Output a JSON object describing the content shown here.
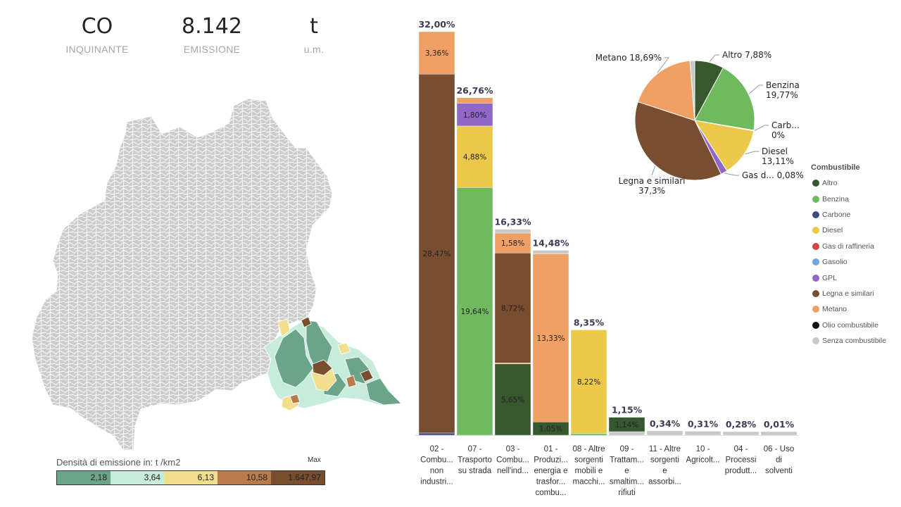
{
  "kpis": [
    {
      "value": "CO",
      "label": "INQUINANTE"
    },
    {
      "value": "8.142",
      "label": "EMISSIONE"
    },
    {
      "value": "t",
      "label": "u.m."
    }
  ],
  "map_legend": {
    "title": "Densità di emissione in:  t /km2",
    "max_label": "Max",
    "segments": [
      {
        "label": "2,18",
        "color": "#6aa58a"
      },
      {
        "label": "3,64",
        "color": "#c7ecdb"
      },
      {
        "label": "6,13",
        "color": "#f2df8e"
      },
      {
        "label": "10,58",
        "color": "#b97a4c"
      },
      {
        "label": "1.647,97",
        "color": "#7a4e2d"
      }
    ]
  },
  "colors": {
    "Altro": "#37572f",
    "Benzina": "#6fba5f",
    "Carbone": "#3b4a80",
    "Diesel": "#ecc949",
    "Gas di raffineria": "#d64541",
    "Gasolio": "#6fa8dc",
    "GPL": "#9067c8",
    "Legna e similari": "#784d30",
    "Metano": "#f0a064",
    "Olio combustibile": "#111111",
    "Senza combustibile": "#c8c8c8",
    "map_base": "#cccccc",
    "map_highlight": "#6aa58a"
  },
  "fuel_legend": {
    "title": "Combustibile",
    "items": [
      "Altro",
      "Benzina",
      "Carbone",
      "Diesel",
      "Gas di raffineria",
      "Gasolio",
      "GPL",
      "Legna e similari",
      "Metano",
      "Olio combustibile",
      "Senza combustibile"
    ]
  },
  "chart_data": [
    {
      "type": "bar",
      "stacked": true,
      "title": "",
      "ylim": [
        0,
        32
      ],
      "categories": [
        {
          "lines": [
            "02 -",
            "Combu...",
            "non",
            "industri..."
          ],
          "total": 32.0,
          "total_label": "32,00%"
        },
        {
          "lines": [
            "07 -",
            "Trasporto",
            "su strada"
          ],
          "total": 26.76,
          "total_label": "26,76%"
        },
        {
          "lines": [
            "03 -",
            "Combu...",
            "nell'ind..."
          ],
          "total": 16.33,
          "total_label": "16,33%"
        },
        {
          "lines": [
            "01 -",
            "Produzi...",
            "energia e",
            "trasfor...",
            "combu..."
          ],
          "total": 14.48,
          "total_label": "14,48%"
        },
        {
          "lines": [
            "08 - Altre",
            "sorgenti",
            "mobili e",
            "macchi..."
          ],
          "total": 8.35,
          "total_label": "8,35%"
        },
        {
          "lines": [
            "09 -",
            "Trattam...",
            "e",
            "smaltim...",
            "rifiuti"
          ],
          "total": 1.15,
          "total_label": "1,15%"
        },
        {
          "lines": [
            "11 - Altre",
            "sorgenti",
            "e",
            "assorbi..."
          ],
          "total": 0.34,
          "total_label": "0,34%"
        },
        {
          "lines": [
            "10 -",
            "Agricolt..."
          ],
          "total": 0.31,
          "total_label": "0,31%"
        },
        {
          "lines": [
            "04 -",
            "Processi",
            "produtt..."
          ],
          "total": 0.28,
          "total_label": "0,28%"
        },
        {
          "lines": [
            "06 - Uso",
            "di",
            "solventi"
          ],
          "total": 0.01,
          "total_label": "0,01%"
        }
      ],
      "stacks": [
        [
          {
            "s": "Carbone",
            "v": 0.17
          },
          {
            "s": "Legna e similari",
            "v": 28.47,
            "label": "28,47%"
          },
          {
            "s": "Metano",
            "v": 3.36,
            "label": "3,36%"
          }
        ],
        [
          {
            "s": "Benzina",
            "v": 19.64,
            "label": "19,64%"
          },
          {
            "s": "Diesel",
            "v": 4.88,
            "label": "4,88%"
          },
          {
            "s": "GPL",
            "v": 1.8,
            "label": "1,80%"
          },
          {
            "s": "Metano",
            "v": 0.44
          }
        ],
        [
          {
            "s": "Altro",
            "v": 5.65,
            "label": "5,65%"
          },
          {
            "s": "Metano",
            "v": 0.08
          },
          {
            "s": "Legna e similari",
            "v": 8.72,
            "label": "8,72%"
          },
          {
            "s": "Metano",
            "v": 1.58,
            "label": "1,58%"
          },
          {
            "s": "Senza combustibile",
            "v": 0.3
          }
        ],
        [
          {
            "s": "Altro",
            "v": 1.05,
            "label": "1,05%"
          },
          {
            "s": "Metano",
            "v": 13.33,
            "label": "13,33%"
          },
          {
            "s": "Senza combustibile",
            "v": 0.1
          }
        ],
        [
          {
            "s": "Benzina",
            "v": 0.13
          },
          {
            "s": "Diesel",
            "v": 8.22,
            "label": "8,22%"
          }
        ],
        [
          {
            "s": "Senza combustibile",
            "v": 0.01
          },
          {
            "s": "Altro",
            "v": 1.14,
            "label": "1,14%"
          }
        ],
        [
          {
            "s": "Senza combustibile",
            "v": 0.34
          }
        ],
        [
          {
            "s": "Senza combustibile",
            "v": 0.31
          }
        ],
        [
          {
            "s": "Senza combustibile",
            "v": 0.28
          }
        ],
        [
          {
            "s": "Senza combustibile",
            "v": 0.01
          }
        ]
      ]
    },
    {
      "type": "pie",
      "slices": [
        {
          "name": "Altro",
          "label": "Altro 7,88%",
          "value": 7.88
        },
        {
          "name": "Benzina",
          "label": "Benzina 19,77%",
          "value": 19.77
        },
        {
          "name": "Carbone",
          "label": "Carb... 0%",
          "value": 0.17
        },
        {
          "name": "Diesel",
          "label": "Diesel 13,11%",
          "value": 13.11
        },
        {
          "name": "GPL",
          "label": "Gas d... 0,08%",
          "value": 1.8
        },
        {
          "name": "Legna e similari",
          "label": "Legna e similari 37,3%",
          "value": 37.3
        },
        {
          "name": "Metano",
          "label": "Metano 18,69%",
          "value": 18.69
        },
        {
          "name": "Senza combustibile",
          "label": "",
          "value": 1.28
        }
      ],
      "labels": [
        {
          "lines": [
            "Altro 7,88%"
          ],
          "slice": "Altro"
        },
        {
          "lines": [
            "Benzina",
            "19,77%"
          ],
          "slice": "Benzina"
        },
        {
          "lines": [
            "Carb...",
            "0%"
          ],
          "slice": "Carbone"
        },
        {
          "lines": [
            "Diesel",
            "13,11%"
          ],
          "slice": "Diesel"
        },
        {
          "lines": [
            "Gas d... 0,08%"
          ],
          "slice": "GPL"
        },
        {
          "lines": [
            "Legna e similari",
            "37,3%"
          ],
          "slice": "Legna e similari"
        },
        {
          "lines": [
            "Metano 18,69%"
          ],
          "slice": "Metano"
        }
      ]
    }
  ]
}
